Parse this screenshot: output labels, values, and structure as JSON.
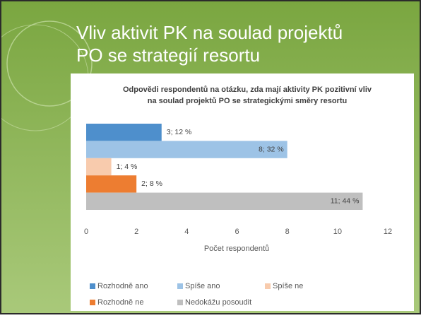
{
  "slide_title": "Vliv aktivit PK na soulad projektů PO se strategií resortu",
  "chart_data": {
    "type": "bar",
    "orientation": "horizontal",
    "title": "Odpovědi respondentů na otázku, zda mají aktivity PK pozitivní vliv na soulad projektů PO se strategickými směry resortu",
    "xlabel": "Počet respondentů",
    "xlim": [
      0,
      12
    ],
    "xticks": [
      0,
      2,
      4,
      6,
      8,
      10,
      12
    ],
    "grid": false,
    "series": [
      {
        "name": "Rozhodně ano",
        "color": "#4e8fcc",
        "values": [
          3
        ],
        "value_labels": [
          "3; 12 %"
        ]
      },
      {
        "name": "Spíše ano",
        "color": "#9dc3e6",
        "values": [
          8
        ],
        "value_labels": [
          "8; 32 %"
        ]
      },
      {
        "name": "Spíše ne",
        "color": "#f8cbad",
        "values": [
          1
        ],
        "value_labels": [
          "1; 4 %"
        ]
      },
      {
        "name": "Rozhodně ne",
        "color": "#ed7d31",
        "values": [
          2
        ],
        "value_labels": [
          "2; 8 %"
        ]
      },
      {
        "name": "Nedokážu posoudit",
        "color": "#bfbfbf",
        "values": [
          11
        ],
        "value_labels": [
          "11; 44 %"
        ]
      }
    ]
  }
}
